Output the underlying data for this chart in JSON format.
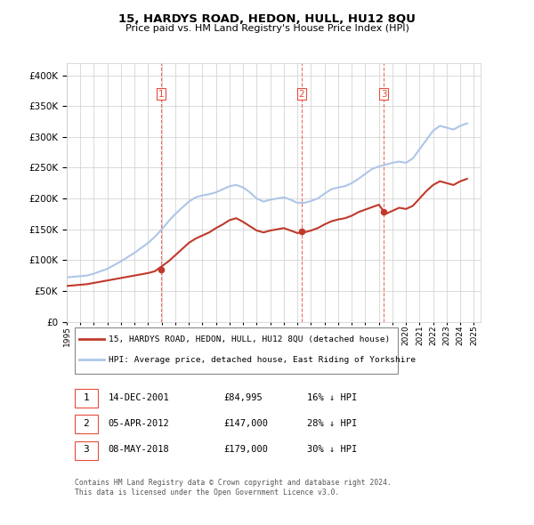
{
  "title": "15, HARDYS ROAD, HEDON, HULL, HU12 8QU",
  "subtitle": "Price paid vs. HM Land Registry's House Price Index (HPI)",
  "sale_dates": [
    "2001-12-14",
    "2012-04-05",
    "2018-05-08"
  ],
  "sale_prices": [
    84995,
    147000,
    179000
  ],
  "sale_labels": [
    "1",
    "2",
    "3"
  ],
  "table_rows": [
    [
      "1",
      "14-DEC-2001",
      "£84,995",
      "16% ↓ HPI"
    ],
    [
      "2",
      "05-APR-2012",
      "£147,000",
      "28% ↓ HPI"
    ],
    [
      "3",
      "08-MAY-2018",
      "£179,000",
      "30% ↓ HPI"
    ]
  ],
  "legend_property": "15, HARDYS ROAD, HEDON, HULL, HU12 8QU (detached house)",
  "legend_hpi": "HPI: Average price, detached house, East Riding of Yorkshire",
  "footer": "Contains HM Land Registry data © Crown copyright and database right 2024.\nThis data is licensed under the Open Government Licence v3.0.",
  "hpi_color": "#aec6e8",
  "property_color": "#c0392b",
  "vline_color": "#e74c3c",
  "background_color": "#ffffff",
  "grid_color": "#cccccc",
  "ylim": [
    0,
    420000
  ],
  "yticks": [
    0,
    50000,
    100000,
    150000,
    200000,
    250000,
    300000,
    350000,
    400000
  ],
  "hpi_data_x": [
    1995.0,
    1995.5,
    1996.0,
    1996.5,
    1997.0,
    1997.5,
    1998.0,
    1998.5,
    1999.0,
    1999.5,
    2000.0,
    2000.5,
    2001.0,
    2001.5,
    2002.0,
    2002.5,
    2003.0,
    2003.5,
    2004.0,
    2004.5,
    2005.0,
    2005.5,
    2006.0,
    2006.5,
    2007.0,
    2007.5,
    2008.0,
    2008.5,
    2009.0,
    2009.5,
    2010.0,
    2010.5,
    2011.0,
    2011.5,
    2012.0,
    2012.5,
    2013.0,
    2013.5,
    2014.0,
    2014.5,
    2015.0,
    2015.5,
    2016.0,
    2016.5,
    2017.0,
    2017.5,
    2018.0,
    2018.5,
    2019.0,
    2019.5,
    2020.0,
    2020.5,
    2021.0,
    2021.5,
    2022.0,
    2022.5,
    2023.0,
    2023.5,
    2024.0,
    2024.5
  ],
  "hpi_data_y": [
    72000,
    73000,
    74000,
    75000,
    78000,
    82000,
    86000,
    92000,
    98000,
    105000,
    112000,
    120000,
    128000,
    138000,
    150000,
    163000,
    175000,
    185000,
    195000,
    202000,
    205000,
    207000,
    210000,
    215000,
    220000,
    222000,
    218000,
    210000,
    200000,
    195000,
    198000,
    200000,
    202000,
    198000,
    193000,
    193000,
    196000,
    200000,
    208000,
    215000,
    218000,
    220000,
    225000,
    232000,
    240000,
    248000,
    252000,
    255000,
    258000,
    260000,
    258000,
    265000,
    280000,
    295000,
    310000,
    318000,
    315000,
    312000,
    318000,
    322000
  ],
  "property_data_x": [
    1995.0,
    1995.5,
    1996.0,
    1996.5,
    1997.0,
    1997.5,
    1998.0,
    1998.5,
    1999.0,
    1999.5,
    2000.0,
    2000.5,
    2001.0,
    2001.5,
    2002.0,
    2002.5,
    2003.0,
    2003.5,
    2004.0,
    2004.5,
    2005.0,
    2005.5,
    2006.0,
    2006.5,
    2007.0,
    2007.5,
    2008.0,
    2008.5,
    2009.0,
    2009.5,
    2010.0,
    2010.5,
    2011.0,
    2011.5,
    2012.0,
    2012.5,
    2013.0,
    2013.5,
    2014.0,
    2014.5,
    2015.0,
    2015.5,
    2016.0,
    2016.5,
    2017.0,
    2017.5,
    2018.0,
    2018.5,
    2019.0,
    2019.5,
    2020.0,
    2020.5,
    2021.0,
    2021.5,
    2022.0,
    2022.5,
    2023.0,
    2023.5,
    2024.0,
    2024.5
  ],
  "property_data_y": [
    58000,
    59000,
    60000,
    61000,
    63000,
    65000,
    67000,
    69000,
    71000,
    73000,
    75000,
    77000,
    79000,
    82000,
    90000,
    98000,
    108000,
    118000,
    128000,
    135000,
    140000,
    145000,
    152000,
    158000,
    165000,
    168000,
    162000,
    155000,
    148000,
    145000,
    148000,
    150000,
    152000,
    148000,
    144000,
    145000,
    148000,
    152000,
    158000,
    163000,
    166000,
    168000,
    172000,
    178000,
    182000,
    186000,
    190000,
    175000,
    180000,
    185000,
    183000,
    188000,
    200000,
    212000,
    222000,
    228000,
    225000,
    222000,
    228000,
    232000
  ]
}
